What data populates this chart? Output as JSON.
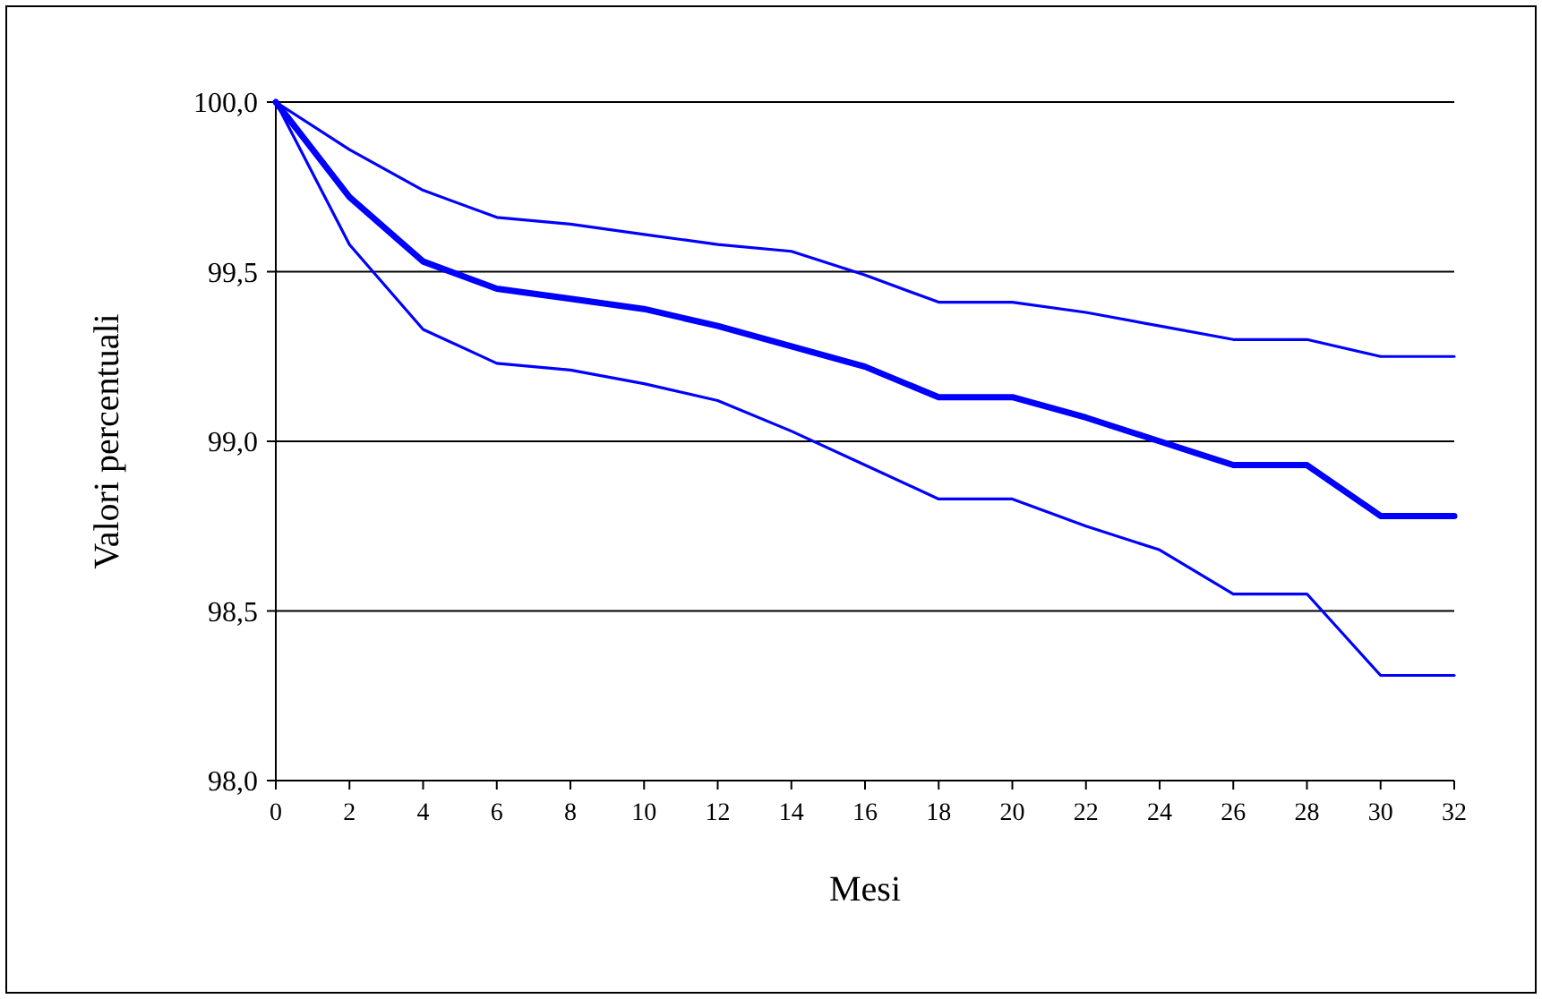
{
  "chart_data": {
    "type": "line",
    "xlabel": "Mesi",
    "ylabel": "Valori percentuali",
    "x": [
      0,
      2,
      4,
      6,
      8,
      10,
      12,
      14,
      16,
      18,
      20,
      22,
      24,
      26,
      28,
      30,
      32
    ],
    "series": [
      {
        "color": "#0000ff",
        "values": [
          100,
          99.86,
          99.74,
          99.66,
          99.64,
          99.61,
          99.58,
          99.56,
          99.49,
          99.41,
          99.41,
          99.38,
          99.34,
          99.3,
          99.3,
          99.25,
          99.25
        ]
      },
      {
        "color": "#0000ff",
        "values": [
          100,
          99.72,
          99.53,
          99.45,
          99.42,
          99.39,
          99.34,
          99.28,
          99.22,
          99.13,
          99.13,
          99.07,
          99.0,
          98.93,
          98.93,
          98.78,
          98.78
        ]
      },
      {
        "color": "#0000ff",
        "values": [
          100,
          99.58,
          99.33,
          99.23,
          99.21,
          99.17,
          99.12,
          99.03,
          98.93,
          98.83,
          98.83,
          98.75,
          98.68,
          98.55,
          98.55,
          98.31,
          98.31
        ]
      }
    ],
    "xlim": [
      0,
      32
    ],
    "xticks": [
      0,
      2,
      4,
      6,
      8,
      10,
      12,
      14,
      16,
      18,
      20,
      22,
      24,
      26,
      28,
      30,
      32
    ],
    "ylim": [
      98,
      100
    ],
    "yticks": [
      {
        "value": 98,
        "label": "98,0"
      },
      {
        "value": 98.5,
        "label": "98,5"
      },
      {
        "value": 99,
        "label": "99,0"
      },
      {
        "value": 99.5,
        "label": "99,5"
      },
      {
        "value": 100,
        "label": "100,0"
      }
    ],
    "grid": "y",
    "marker": "none",
    "line_style": "solid"
  }
}
